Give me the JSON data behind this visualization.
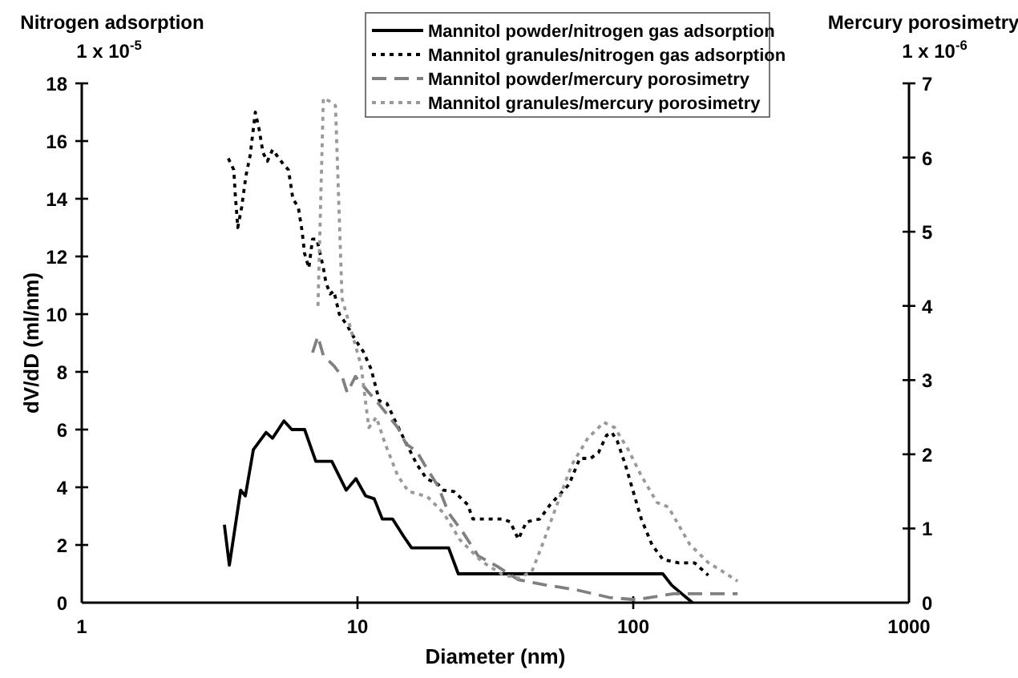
{
  "chart_data": {
    "type": "line",
    "xlabel": "Diameter (nm)",
    "ylabel": "dV/dD (ml/nm)",
    "y2label": "Mercury porosimetry",
    "annotations": [
      "Nitrogen adsorption",
      "1 x 10$^{-5}$",
      "1 x 10$^{-6}$"
    ],
    "log": "x",
    "xlim": [
      1,
      1000
    ],
    "xticks": [
      1,
      10,
      100,
      1000
    ],
    "ylim": [
      0,
      18
    ],
    "yticks": [
      0,
      2,
      4,
      6,
      8,
      10,
      12,
      14,
      16,
      18
    ],
    "y2lim": [
      0,
      7
    ],
    "y2ticks": [
      0,
      1,
      2,
      3,
      4,
      5,
      6,
      7
    ],
    "legend": "top",
    "series": [
      {
        "name": "Mannitol powder/nitrogen gas adsorption",
        "color": "#000000",
        "line_style": "solid",
        "x": [
          3.29,
          3.43,
          3.77,
          3.92,
          4.19,
          4.66,
          4.92,
          5.41,
          5.78,
          6.43,
          7.06,
          8.07,
          9.1,
          9.87,
          10.7,
          11.5,
          12.3,
          13.4,
          14.7,
          15.7,
          21.4,
          23.2,
          128,
          138,
          164
        ],
        "values": [
          2.7,
          1.3,
          3.9,
          3.7,
          5.3,
          5.9,
          5.7,
          6.3,
          6,
          6,
          4.9,
          4.9,
          3.9,
          4.3,
          3.7,
          3.6,
          2.9,
          2.9,
          2.3,
          1.9,
          1.9,
          1,
          1,
          0.6,
          0
        ]
      },
      {
        "name": "Mannitol granules/nitrogen gas adsorption",
        "color": "#000000",
        "line_style": "dotted",
        "x": [
          3.4,
          3.56,
          3.6,
          3.68,
          3.8,
          3.94,
          4.08,
          4.26,
          4.4,
          4.54,
          4.71,
          4.92,
          5.1,
          5.38,
          5.62,
          5.83,
          6.1,
          6.29,
          6.43,
          6.66,
          6.87,
          7.12,
          7.28,
          7.52,
          7.68,
          7.96,
          8.21,
          8.59,
          9.18,
          9.83,
          10.5,
          11.2,
          12,
          12.8,
          13.7,
          14.7,
          16.4,
          17.8,
          19.6,
          20.5,
          22.4,
          25.1,
          26.2,
          33.5,
          35.8,
          38.3,
          41,
          45.8,
          50,
          54.7,
          58.5,
          64,
          70,
          74.8,
          80,
          83.7,
          87.5,
          93.5,
          100,
          107,
          117,
          128,
          146,
          167,
          187
        ],
        "values": [
          15.4,
          15,
          14.2,
          13,
          13.7,
          14.8,
          15.5,
          17,
          16.4,
          15.6,
          15.3,
          15.7,
          15.5,
          15.2,
          15,
          14,
          13.7,
          12.9,
          12.1,
          11.6,
          12.6,
          12.6,
          12.2,
          11.6,
          11.1,
          10.7,
          10.8,
          10,
          9.6,
          9.1,
          8.7,
          8.1,
          7,
          6.9,
          6.3,
          5.7,
          4.8,
          4.3,
          4.1,
          3.9,
          3.85,
          3.4,
          2.9,
          2.9,
          2.8,
          2.2,
          2.8,
          2.9,
          3.4,
          3.8,
          4.1,
          5,
          5,
          5.2,
          5.8,
          5.9,
          5.6,
          4.8,
          3.85,
          2.9,
          2,
          1.5,
          1.38,
          1.38,
          0.95
        ]
      },
      {
        "name": "Mannitol powder/mercury porosimetry",
        "color": "#808080",
        "line_style": "dashed",
        "axis": "y2",
        "x": [
          6.87,
          7.18,
          7.52,
          8.22,
          8.79,
          9.18,
          9.83,
          11,
          11.7,
          12.8,
          14,
          15,
          16.4,
          17.5,
          19.6,
          21.4,
          24,
          27.4,
          32.1,
          38.3,
          47.9,
          62.6,
          81.8,
          102,
          140,
          239
        ],
        "values": [
          3.37,
          3.59,
          3.33,
          3.19,
          3.05,
          2.83,
          3.05,
          2.83,
          2.72,
          2.54,
          2.36,
          2.14,
          2.04,
          1.86,
          1.57,
          1.21,
          0.96,
          0.63,
          0.49,
          0.31,
          0.24,
          0.17,
          0.07,
          0.04,
          0.12,
          0.12
        ]
      },
      {
        "name": "Mannitol granules/mercury porosimetry",
        "color": "#999999",
        "line_style": "dotted",
        "axis": "y2",
        "x": [
          7.19,
          7.52,
          8,
          8.32,
          8.79,
          9.6,
          10.3,
          10.7,
          11,
          11.7,
          12.6,
          14,
          15.3,
          17.9,
          20.5,
          23.5,
          28.1,
          33.5,
          38.3,
          42.9,
          46.8,
          52.4,
          59.9,
          68.5,
          78.3,
          85.6,
          95.7,
          107,
          122,
          134,
          160,
          187,
          209,
          239
        ],
        "values": [
          4,
          6.8,
          6.75,
          6.7,
          4.1,
          3.6,
          3.2,
          2.7,
          2.36,
          2.5,
          2.14,
          1.71,
          1.5,
          1.43,
          1.21,
          0.85,
          0.56,
          0.38,
          0.33,
          0.42,
          0.78,
          1.28,
          1.86,
          2.22,
          2.43,
          2.36,
          2.07,
          1.71,
          1.35,
          1.29,
          0.79,
          0.54,
          0.43,
          0.29
        ]
      }
    ]
  }
}
